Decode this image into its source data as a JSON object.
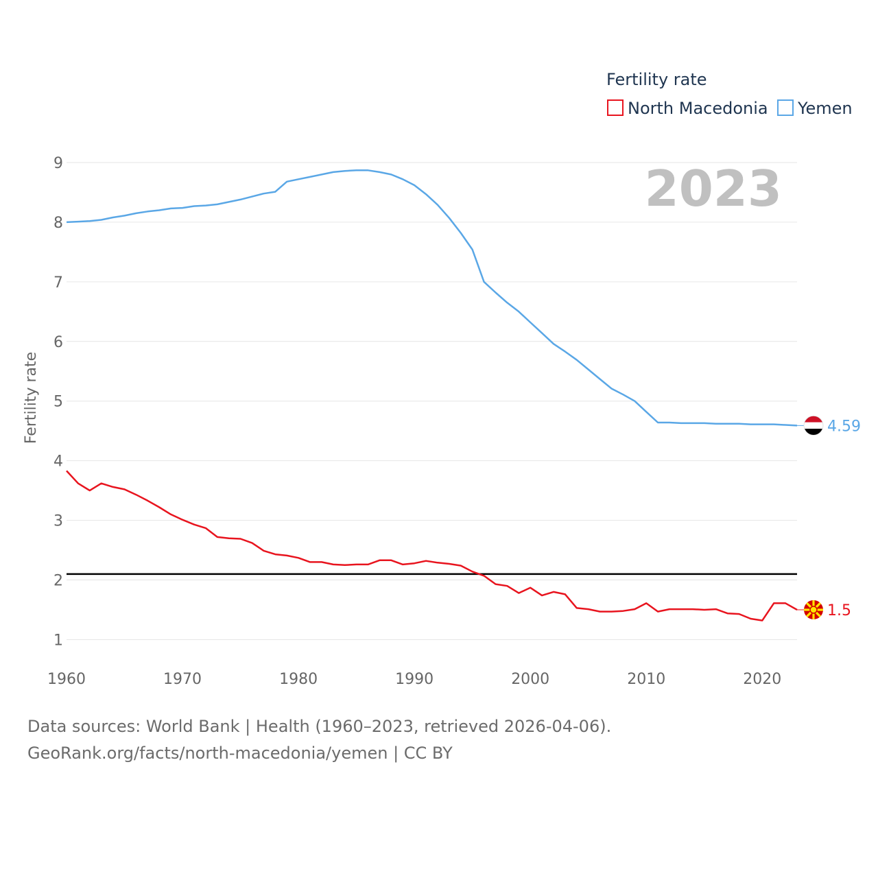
{
  "chart_data": {
    "type": "line",
    "legend_title": "Fertility rate",
    "ylabel": "Fertility rate",
    "xlabel": "",
    "year_label": "2023",
    "x_ticks": [
      1960,
      1970,
      1980,
      1990,
      2000,
      2010,
      2020
    ],
    "y_ticks": [
      1,
      2,
      3,
      4,
      5,
      6,
      7,
      8,
      9
    ],
    "xlim": [
      1960,
      2023
    ],
    "ylim": [
      0.66,
      9.0
    ],
    "reference_line": {
      "value": 2.1,
      "color": "#000000"
    },
    "x": [
      1960,
      1961,
      1962,
      1963,
      1964,
      1965,
      1966,
      1967,
      1968,
      1969,
      1970,
      1971,
      1972,
      1973,
      1974,
      1975,
      1976,
      1977,
      1978,
      1979,
      1980,
      1981,
      1982,
      1983,
      1984,
      1985,
      1986,
      1987,
      1988,
      1989,
      1990,
      1991,
      1992,
      1993,
      1994,
      1995,
      1996,
      1997,
      1998,
      1999,
      2000,
      2001,
      2002,
      2003,
      2004,
      2005,
      2006,
      2007,
      2008,
      2009,
      2010,
      2011,
      2012,
      2013,
      2014,
      2015,
      2016,
      2017,
      2018,
      2019,
      2020,
      2021,
      2022,
      2023
    ],
    "series": [
      {
        "name": "North Macedonia",
        "color": "#e8141e",
        "end_label": "1.5",
        "values": [
          3.83,
          3.62,
          3.5,
          3.62,
          3.56,
          3.52,
          3.43,
          3.33,
          3.22,
          3.1,
          3.01,
          2.93,
          2.87,
          2.72,
          2.7,
          2.69,
          2.62,
          2.49,
          2.43,
          2.41,
          2.37,
          2.3,
          2.3,
          2.26,
          2.25,
          2.26,
          2.26,
          2.33,
          2.33,
          2.26,
          2.28,
          2.32,
          2.29,
          2.27,
          2.24,
          2.14,
          2.07,
          1.93,
          1.9,
          1.78,
          1.87,
          1.74,
          1.8,
          1.76,
          1.53,
          1.51,
          1.47,
          1.47,
          1.48,
          1.51,
          1.61,
          1.47,
          1.51,
          1.51,
          1.51,
          1.5,
          1.51,
          1.44,
          1.43,
          1.35,
          1.32,
          1.61,
          1.61,
          1.5
        ]
      },
      {
        "name": "Yemen",
        "color": "#5aa7e6",
        "end_label": "4.59",
        "values": [
          8.0,
          8.01,
          8.02,
          8.04,
          8.08,
          8.11,
          8.15,
          8.18,
          8.2,
          8.23,
          8.24,
          8.27,
          8.28,
          8.3,
          8.34,
          8.38,
          8.43,
          8.48,
          8.51,
          8.68,
          8.72,
          8.76,
          8.8,
          8.84,
          8.86,
          8.87,
          8.87,
          8.84,
          8.8,
          8.72,
          8.62,
          8.47,
          8.29,
          8.07,
          7.82,
          7.54,
          7.0,
          6.82,
          6.65,
          6.5,
          6.32,
          6.14,
          5.96,
          5.83,
          5.69,
          5.53,
          5.37,
          5.21,
          5.11,
          5.0,
          4.82,
          4.64,
          4.64,
          4.63,
          4.63,
          4.63,
          4.62,
          4.62,
          4.62,
          4.61,
          4.61,
          4.61,
          4.6,
          4.59
        ]
      }
    ]
  },
  "footer": {
    "line1": "Data sources: World Bank | Health (1960–2023, retrieved 2026-04-06).",
    "line2": "GeoRank.org/facts/north-macedonia/yemen | CC BY"
  }
}
